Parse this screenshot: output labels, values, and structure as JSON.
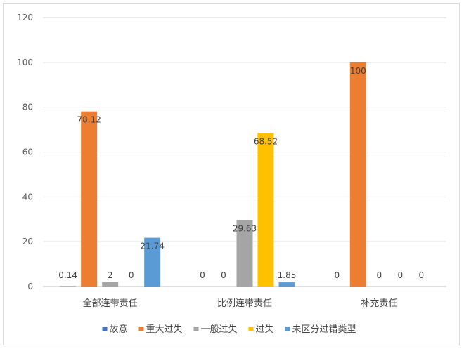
{
  "chart_data": {
    "type": "bar",
    "title": "",
    "xlabel": "",
    "ylabel": "",
    "ylim": [
      0,
      120
    ],
    "yticks": [
      0,
      20,
      40,
      60,
      80,
      100,
      120
    ],
    "grid": true,
    "legend_position": "bottom",
    "categories": [
      "全部连带责任",
      "比例连带责任",
      "补充责任"
    ],
    "series": [
      {
        "name": "故意",
        "color": "#4472C4",
        "values": [
          0.14,
          0,
          0
        ],
        "labels": [
          "0.14",
          "0",
          "0"
        ]
      },
      {
        "name": "重大过失",
        "color": "#ED7D31",
        "values": [
          78.12,
          0,
          100
        ],
        "labels": [
          "78.12",
          "0",
          "100"
        ]
      },
      {
        "name": "一般过失",
        "color": "#A5A5A5",
        "values": [
          2,
          29.63,
          0
        ],
        "labels": [
          "2",
          "29.63",
          "0"
        ]
      },
      {
        "name": "过失",
        "color": "#FFC000",
        "values": [
          0,
          68.52,
          0
        ],
        "labels": [
          "0",
          "68.52",
          "0"
        ]
      },
      {
        "name": "未区分过错类型",
        "color": "#5B9BD5",
        "values": [
          21.74,
          1.85,
          0
        ],
        "labels": [
          "21.74",
          "1.85",
          "0"
        ]
      }
    ]
  }
}
